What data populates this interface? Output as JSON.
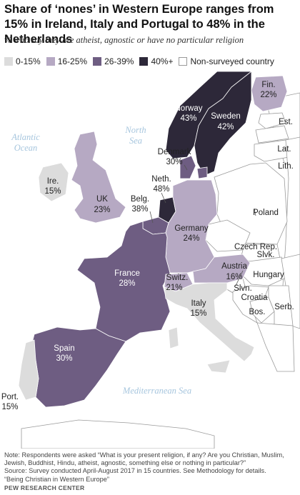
{
  "title": "Share of ‘nones’ in Western Europe ranges from 15% in Ireland, Italy and Portugal to 48% in the Netherlands",
  "subtitle": "% who say they are atheist, agnostic or have no particular religion",
  "legend": [
    {
      "label": "0-15%",
      "color": "#dcdcdc"
    },
    {
      "label": "16-25%",
      "color": "#b6a9c3"
    },
    {
      "label": "26-39%",
      "color": "#6e5d82"
    },
    {
      "label": "40%+",
      "color": "#2d2839"
    },
    {
      "label": "Non-surveyed country",
      "color": "#ffffff"
    }
  ],
  "seas": {
    "atlantic_1": "Atlantic",
    "atlantic_2": "Ocean",
    "north_1": "North",
    "north_2": "Sea",
    "med": "Mediterranean Sea"
  },
  "countries": {
    "norway": {
      "name": "Norway",
      "value": "43%"
    },
    "sweden": {
      "name": "Sweden",
      "value": "42%"
    },
    "finland": {
      "name": "Fin.",
      "value": "22%"
    },
    "denmark": {
      "name": "Denmark",
      "value": "30%"
    },
    "ireland": {
      "name": "Ire.",
      "value": "15%"
    },
    "uk": {
      "name": "UK",
      "value": "23%"
    },
    "netherlands": {
      "name": "Neth.",
      "value": "48%"
    },
    "belgium": {
      "name": "Belg.",
      "value": "38%"
    },
    "germany": {
      "name": "Germany",
      "value": "24%"
    },
    "france": {
      "name": "France",
      "value": "28%"
    },
    "switzerland": {
      "name": "Switz.",
      "value": "21%"
    },
    "austria": {
      "name": "Austria",
      "value": "16%"
    },
    "italy": {
      "name": "Italy",
      "value": "15%"
    },
    "spain": {
      "name": "Spain",
      "value": "30%"
    },
    "portugal": {
      "name": "Port.",
      "value": "15%"
    }
  },
  "non_surveyed": {
    "estonia": "Est.",
    "latvia": "Lat.",
    "lithuania": "Lith.",
    "poland": "Poland",
    "czech": "Czech Rep.",
    "slovakia": "Slvk.",
    "hungary": "Hungary",
    "slovenia": "Slvn.",
    "croatia": "Croatia",
    "bosnia": "Bos.",
    "serbia": "Serb."
  },
  "notes": {
    "line1": "Note: Respondents were asked “What is your present religion, if any? Are you Christian, Muslim,",
    "line2": "Jewish, Buddhist, Hindu, atheist, agnostic, something else or nothing in particular?”",
    "line3": "Source: Survey conducted April-August 2017 in 15 countries. See Methodology for details.",
    "line4": "“Being Christian in Western Europe”"
  },
  "source_org": "PEW RESEARCH CENTER"
}
